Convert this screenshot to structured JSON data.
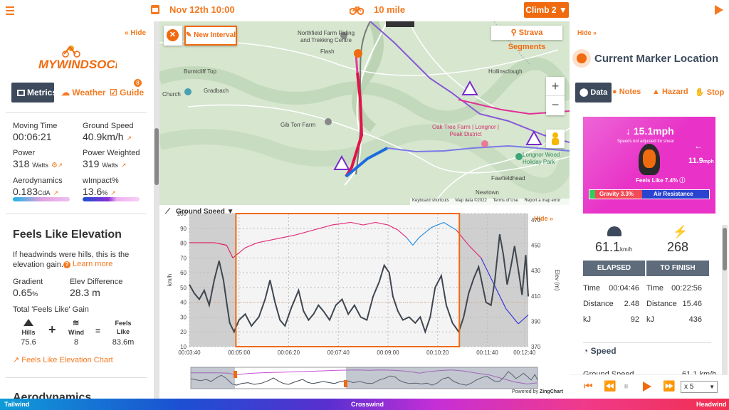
{
  "topbar": {
    "menu_icon": "hamburger-icon",
    "date_time": "Nov 12th 10:00",
    "route_name": "10 mile",
    "climb_button": "Climb 2 ▼",
    "play_icon": "play-icon"
  },
  "left": {
    "hide_label": "« Hide",
    "logo_text": "MYWINDSOCK",
    "tabs": {
      "metrics": "Metrics",
      "weather": "Weather",
      "guide": "Guide",
      "guide_badge": "8"
    },
    "stats": {
      "moving_time_label": "Moving Time",
      "moving_time": "00:06:21",
      "ground_speed_label": "Ground Speed",
      "ground_speed": "40.9km/h",
      "power_label": "Power",
      "power": "318",
      "power_unit": "Watts",
      "power_weighted_label": "Power Weighted",
      "power_weighted": "319",
      "power_weighted_unit": "Watts",
      "aero_label": "Aerodynamics",
      "aero": "0.183",
      "aero_unit": "CdA",
      "wimpact_label": "wImpact%",
      "wimpact": "13.6",
      "wimpact_unit": "%"
    },
    "feels_like": {
      "title": "Feels Like Elevation",
      "desc": "If headwinds were hills, this is the elevation gain.",
      "learn_more": "Learn more",
      "gradient_label": "Gradient",
      "gradient": "0.65",
      "gradient_unit": "%",
      "elev_diff_label": "Elev Difference",
      "elev_diff": "28.3 m",
      "total_label": "Total 'Feels Like' Gain",
      "hills_label": "Hills",
      "hills_value": "75.6",
      "plus": "+",
      "wind_label": "Wind",
      "wind_value": "8",
      "equals": "=",
      "feels_like_label": "Feels Like",
      "feels_like_value": "83.6m",
      "chart_link": "Feels Like Elevation Chart"
    },
    "next_section": "Aerodynamics"
  },
  "map": {
    "close_icon": "close-x-icon",
    "new_interval": "New Interval",
    "strava_segments": "Strava Segments",
    "zoom_in": "+",
    "zoom_out": "−",
    "places": [
      {
        "name": "Northfield Farm Riding and Trekking Centre"
      },
      {
        "name": "Flash"
      },
      {
        "name": "Burntcliff Top"
      },
      {
        "name": "Gradbach"
      },
      {
        "name": "Church"
      },
      {
        "name": "Gib Torr Farm"
      },
      {
        "name": "Hollinsclough"
      },
      {
        "name": "Oak Tree Farm | Longnor | Peak District"
      },
      {
        "name": "Longnor Wood Holiday Park"
      },
      {
        "name": "Fawfieldhead"
      },
      {
        "name": "Newtown"
      }
    ],
    "attribution": [
      "Keyboard shortcuts",
      "Map data ©2022",
      "Terms of Use",
      "Report a map error"
    ]
  },
  "chart_controls": {
    "metric_select": "Ground Speed ▼",
    "hide_label": "Hide »",
    "powered_by": "Powered by",
    "zingchart": "ZingChart"
  },
  "chart_data": {
    "type": "line",
    "xlabel": "",
    "ylabel": "km/h",
    "ylabel_right": "Elev (m)",
    "x_ticks": [
      "00:03:40",
      "00:05:00",
      "00:06:20",
      "00:07:40",
      "00:09:00",
      "00:10:20",
      "00:11:40",
      "00:12:40"
    ],
    "y_ticks": [
      10,
      20,
      30,
      40,
      50,
      60,
      70,
      80,
      90,
      100
    ],
    "y2_ticks": [
      370,
      390,
      410,
      430,
      450,
      470
    ],
    "ylim": [
      10,
      100
    ],
    "y2lim": [
      370,
      475
    ],
    "x_range_seconds": [
      220,
      766
    ],
    "selection": {
      "start": "00:04:55",
      "end": "00:10:55"
    },
    "series": [
      {
        "axis": "left",
        "color": "#3f4650",
        "points": [
          [
            220,
            52
          ],
          [
            228,
            46
          ],
          [
            236,
            42
          ],
          [
            244,
            48
          ],
          [
            252,
            38
          ],
          [
            260,
            55
          ],
          [
            268,
            68
          ],
          [
            275,
            55
          ],
          [
            280,
            40
          ],
          [
            285,
            26
          ],
          [
            292,
            20
          ],
          [
            300,
            28
          ],
          [
            310,
            32
          ],
          [
            320,
            24
          ],
          [
            332,
            30
          ],
          [
            342,
            42
          ],
          [
            350,
            55
          ],
          [
            358,
            40
          ],
          [
            366,
            28
          ],
          [
            374,
            24
          ],
          [
            384,
            36
          ],
          [
            396,
            48
          ],
          [
            404,
            34
          ],
          [
            412,
            28
          ],
          [
            420,
            32
          ],
          [
            428,
            38
          ],
          [
            436,
            34
          ],
          [
            446,
            28
          ],
          [
            456,
            38
          ],
          [
            466,
            42
          ],
          [
            476,
            32
          ],
          [
            486,
            38
          ],
          [
            496,
            30
          ],
          [
            506,
            28
          ],
          [
            516,
            44
          ],
          [
            526,
            54
          ],
          [
            534,
            65
          ],
          [
            542,
            60
          ],
          [
            548,
            44
          ],
          [
            556,
            34
          ],
          [
            564,
            28
          ],
          [
            574,
            30
          ],
          [
            584,
            26
          ],
          [
            592,
            30
          ],
          [
            600,
            20
          ],
          [
            608,
            30
          ],
          [
            616,
            50
          ],
          [
            626,
            58
          ],
          [
            634,
            38
          ],
          [
            644,
            26
          ],
          [
            654,
            20
          ],
          [
            662,
            30
          ],
          [
            670,
            46
          ],
          [
            678,
            56
          ],
          [
            686,
            64
          ],
          [
            692,
            52
          ],
          [
            698,
            40
          ],
          [
            706,
            38
          ],
          [
            712,
            54
          ],
          [
            720,
            86
          ],
          [
            726,
            72
          ],
          [
            732,
            52
          ],
          [
            738,
            64
          ],
          [
            744,
            78
          ],
          [
            750,
            62
          ],
          [
            756,
            45
          ],
          [
            762,
            72
          ],
          [
            766,
            44
          ]
        ]
      },
      {
        "axis": "right",
        "color": "#e0307a",
        "points": [
          [
            220,
            452
          ],
          [
            240,
            452
          ],
          [
            260,
            452
          ],
          [
            280,
            450
          ],
          [
            290,
            440
          ],
          [
            300,
            444
          ],
          [
            310,
            448
          ],
          [
            330,
            452
          ],
          [
            360,
            455
          ],
          [
            390,
            458
          ],
          [
            420,
            462
          ],
          [
            450,
            466
          ],
          [
            480,
            468
          ],
          [
            500,
            466
          ],
          [
            520,
            468
          ],
          [
            540,
            466
          ],
          [
            556,
            462
          ],
          [
            570,
            456
          ],
          [
            580,
            450
          ],
          [
            590,
            456
          ],
          [
            610,
            464
          ],
          [
            630,
            468
          ],
          [
            650,
            462
          ],
          [
            670,
            450
          ],
          [
            690,
            440
          ],
          [
            710,
            420
          ],
          [
            730,
            400
          ],
          [
            750,
            388
          ],
          [
            766,
            395
          ]
        ]
      }
    ]
  },
  "right": {
    "hide_label": "Hide »",
    "marker_title": "Current Marker Location",
    "tabs": {
      "data": "Data",
      "notes": "Notes",
      "hazard": "Hazard",
      "stop": "Stop"
    },
    "wind_card": {
      "speed": "15.1mph",
      "shear_note": "Speeds not adjusted for shear",
      "cross_speed": "11.9",
      "cross_unit": "mph",
      "feels_like": "Feels Like 7.4%",
      "gravity": "Gravity 3.3%",
      "air_resistance": "Air Resistance"
    },
    "speed_value": "61.1",
    "speed_unit": "km/h",
    "power_value": "268",
    "elapsed_label": "ELAPSED",
    "to_finish_label": "TO FINISH",
    "rows": [
      {
        "label": "Time",
        "elapsed": "00:04:46",
        "label2": "Time",
        "finish": "00:22:56"
      },
      {
        "label": "Distance",
        "elapsed": "2.48",
        "label2": "Distance",
        "finish": "15.46"
      },
      {
        "label": "kJ",
        "elapsed": "92",
        "label2": "kJ",
        "finish": "436"
      }
    ],
    "speed_section": "Speed",
    "ground_speed_row": "Ground Speed",
    "ground_speed_value": "61.1 km/h",
    "playback_speed": "x 5"
  },
  "bottom_bar": {
    "left": "Tailwind",
    "center": "Crosswind",
    "right": "Headwind"
  },
  "colors": {
    "accent": "#f47920",
    "dark": "#3c4a5c",
    "magenta": "#e0307a"
  }
}
